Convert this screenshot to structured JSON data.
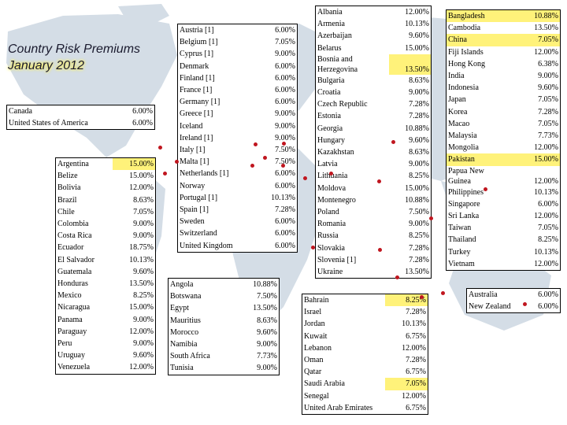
{
  "title": {
    "line1": "Country Risk Premiums",
    "line2": "January 2012"
  },
  "colors": {
    "highlight": "#fff27a",
    "marker": "#c0161f",
    "map_land": "#d4dde6",
    "map_sea": "#ffffff"
  },
  "north_america": [
    {
      "country": "Canada",
      "premium": "6.00%",
      "highlight": false
    },
    {
      "country": "United States of America",
      "premium": "6.00%",
      "highlight": false
    }
  ],
  "latin_america": [
    {
      "country": "Argentina",
      "premium": "15.00%",
      "highlight": true
    },
    {
      "country": "Belize",
      "premium": "15.00%",
      "highlight": false
    },
    {
      "country": "Bolivia",
      "premium": "12.00%",
      "highlight": false
    },
    {
      "country": "Brazil",
      "premium": "8.63%",
      "highlight": false
    },
    {
      "country": "Chile",
      "premium": "7.05%",
      "highlight": false
    },
    {
      "country": "Colombia",
      "premium": "9.00%",
      "highlight": false
    },
    {
      "country": "Costa Rica",
      "premium": "9.00%",
      "highlight": false
    },
    {
      "country": "Ecuador",
      "premium": "18.75%",
      "highlight": false
    },
    {
      "country": "El Salvador",
      "premium": "10.13%",
      "highlight": false
    },
    {
      "country": "Guatemala",
      "premium": "9.60%",
      "highlight": false
    },
    {
      "country": "Honduras",
      "premium": "13.50%",
      "highlight": false
    },
    {
      "country": "Mexico",
      "premium": "8.25%",
      "highlight": false
    },
    {
      "country": "Nicaragua",
      "premium": "15.00%",
      "highlight": false
    },
    {
      "country": "Panama",
      "premium": "9.00%",
      "highlight": false
    },
    {
      "country": "Paraguay",
      "premium": "12.00%",
      "highlight": false
    },
    {
      "country": "Peru",
      "premium": "9.00%",
      "highlight": false
    },
    {
      "country": "Uruguay",
      "premium": "9.60%",
      "highlight": false
    },
    {
      "country": "Venezuela",
      "premium": "12.00%",
      "highlight": false
    }
  ],
  "western_europe": [
    {
      "country": "Austria [1]",
      "premium": "6.00%",
      "highlight": false
    },
    {
      "country": "Belgium [1]",
      "premium": "7.05%",
      "highlight": false
    },
    {
      "country": "Cyprus [1]",
      "premium": "9.00%",
      "highlight": false
    },
    {
      "country": "Denmark",
      "premium": "6.00%",
      "highlight": false
    },
    {
      "country": "Finland [1]",
      "premium": "6.00%",
      "highlight": false
    },
    {
      "country": "France [1]",
      "premium": "6.00%",
      "highlight": false
    },
    {
      "country": "Germany [1]",
      "premium": "6.00%",
      "highlight": false
    },
    {
      "country": "Greece [1]",
      "premium": "9.00%",
      "highlight": false
    },
    {
      "country": "Iceland",
      "premium": "9.00%",
      "highlight": false
    },
    {
      "country": "Ireland [1]",
      "premium": "9.00%",
      "highlight": false
    },
    {
      "country": "Italy [1]",
      "premium": "7.50%",
      "highlight": false
    },
    {
      "country": "Malta [1]",
      "premium": "7.50%",
      "highlight": false
    },
    {
      "country": "Netherlands [1]",
      "premium": "6.00%",
      "highlight": false
    },
    {
      "country": "Norway",
      "premium": "6.00%",
      "highlight": false
    },
    {
      "country": "Portugal [1]",
      "premium": "10.13%",
      "highlight": false
    },
    {
      "country": "Spain [1]",
      "premium": "7.28%",
      "highlight": false
    },
    {
      "country": "Sweden",
      "premium": "6.00%",
      "highlight": false
    },
    {
      "country": "Switzerland",
      "premium": "6.00%",
      "highlight": false
    },
    {
      "country": "United Kingdom",
      "premium": "6.00%",
      "highlight": false
    }
  ],
  "eastern_europe": [
    {
      "country": "Albania",
      "premium": "12.00%",
      "highlight": false
    },
    {
      "country": "Armenia",
      "premium": "10.13%",
      "highlight": false
    },
    {
      "country": "Azerbaijan",
      "premium": "9.60%",
      "highlight": false
    },
    {
      "country": "Belarus",
      "premium": "15.00%",
      "highlight": false
    },
    {
      "country": "Bosnia and Herzegovina",
      "premium": "13.50%",
      "highlight": true
    },
    {
      "country": "Bulgaria",
      "premium": "8.63%",
      "highlight": false
    },
    {
      "country": "Croatia",
      "premium": "9.00%",
      "highlight": false
    },
    {
      "country": "Czech Republic",
      "premium": "7.28%",
      "highlight": false
    },
    {
      "country": "Estonia",
      "premium": "7.28%",
      "highlight": false
    },
    {
      "country": "Georgia",
      "premium": "10.88%",
      "highlight": false
    },
    {
      "country": "Hungary",
      "premium": "9.60%",
      "highlight": false
    },
    {
      "country": "Kazakhstan",
      "premium": "8.63%",
      "highlight": false
    },
    {
      "country": "Latvia",
      "premium": "9.00%",
      "highlight": false
    },
    {
      "country": "Lithuania",
      "premium": "8.25%",
      "highlight": false
    },
    {
      "country": "Moldova",
      "premium": "15.00%",
      "highlight": false
    },
    {
      "country": "Montenegro",
      "premium": "10.88%",
      "highlight": false
    },
    {
      "country": "Poland",
      "premium": "7.50%",
      "highlight": false
    },
    {
      "country": "Romania",
      "premium": "9.00%",
      "highlight": false
    },
    {
      "country": "Russia",
      "premium": "8.25%",
      "highlight": false
    },
    {
      "country": "Slovakia",
      "premium": "7.28%",
      "highlight": false
    },
    {
      "country": "Slovenia [1]",
      "premium": "7.28%",
      "highlight": false
    },
    {
      "country": "Ukraine",
      "premium": "13.50%",
      "highlight": false
    }
  ],
  "asia": [
    {
      "country": "Bangladesh",
      "premium": "10.88%",
      "highlight": true
    },
    {
      "country": "Cambodia",
      "premium": "13.50%",
      "highlight": false
    },
    {
      "country": "China",
      "premium": "7.05%",
      "highlight": true
    },
    {
      "country": "Fiji Islands",
      "premium": "12.00%",
      "highlight": false
    },
    {
      "country": "Hong Kong",
      "premium": "6.38%",
      "highlight": false
    },
    {
      "country": "India",
      "premium": "9.00%",
      "highlight": false
    },
    {
      "country": "Indonesia",
      "premium": "9.60%",
      "highlight": false
    },
    {
      "country": "Japan",
      "premium": "7.05%",
      "highlight": false
    },
    {
      "country": "Korea",
      "premium": "7.28%",
      "highlight": false
    },
    {
      "country": "Macao",
      "premium": "7.05%",
      "highlight": false
    },
    {
      "country": "Malaysia",
      "premium": "7.73%",
      "highlight": false
    },
    {
      "country": "Mongolia",
      "premium": "12.00%",
      "highlight": false
    },
    {
      "country": "Pakistan",
      "premium": "15.00%",
      "highlight": true
    },
    {
      "country": "Papua New Guinea",
      "premium": "12.00%",
      "highlight": false
    },
    {
      "country": "Philippines",
      "premium": "10.13%",
      "highlight": false
    },
    {
      "country": "Singapore",
      "premium": "6.00%",
      "highlight": false
    },
    {
      "country": "Sri Lanka",
      "premium": "12.00%",
      "highlight": false
    },
    {
      "country": "Taiwan",
      "premium": "7.05%",
      "highlight": false
    },
    {
      "country": "Thailand",
      "premium": "8.25%",
      "highlight": false
    },
    {
      "country": "Turkey",
      "premium": "10.13%",
      "highlight": false
    },
    {
      "country": "Vietnam",
      "premium": "12.00%",
      "highlight": false
    }
  ],
  "africa": [
    {
      "country": "Angola",
      "premium": "10.88%",
      "highlight": false
    },
    {
      "country": "Botswana",
      "premium": "7.50%",
      "highlight": false
    },
    {
      "country": "Egypt",
      "premium": "13.50%",
      "highlight": false
    },
    {
      "country": "Mauritius",
      "premium": "8.63%",
      "highlight": false
    },
    {
      "country": "Morocco",
      "premium": "9.60%",
      "highlight": false
    },
    {
      "country": "Namibia",
      "premium": "9.00%",
      "highlight": false
    },
    {
      "country": "South Africa",
      "premium": "7.73%",
      "highlight": false
    },
    {
      "country": "Tunisia",
      "premium": "9.00%",
      "highlight": false
    }
  ],
  "middle_east": [
    {
      "country": "Bahrain",
      "premium": "8.25%",
      "highlight": true
    },
    {
      "country": "Israel",
      "premium": "7.28%",
      "highlight": false
    },
    {
      "country": "Jordan",
      "premium": "10.13%",
      "highlight": false
    },
    {
      "country": "Kuwait",
      "premium": "6.75%",
      "highlight": false
    },
    {
      "country": "Lebanon",
      "premium": "12.00%",
      "highlight": false
    },
    {
      "country": "Oman",
      "premium": "7.28%",
      "highlight": false
    },
    {
      "country": "Qatar",
      "premium": "6.75%",
      "highlight": false
    },
    {
      "country": "Saudi Arabia",
      "premium": "7.05%",
      "highlight": true
    },
    {
      "country": "Senegal",
      "premium": "12.00%",
      "highlight": false
    },
    {
      "country": "United Arab Emirates",
      "premium": "6.75%",
      "highlight": false
    }
  ],
  "oceania": [
    {
      "country": "Australia",
      "premium": "6.00%",
      "highlight": false
    },
    {
      "country": "New Zealand",
      "premium": "6.00%",
      "highlight": false
    }
  ]
}
